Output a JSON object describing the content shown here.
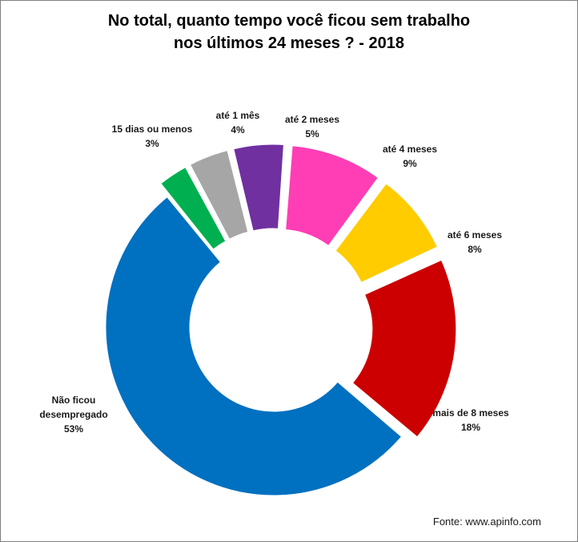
{
  "chart_data": {
    "type": "pie",
    "subtype": "exploded-donut",
    "title_line1": "No total, quanto tempo você ficou sem trabalho",
    "title_line2": "nos últimos 24 meses ? - 2018",
    "slices": [
      {
        "label_lines": [
          "15 dias ou menos"
        ],
        "pct_label": "3%",
        "value": 3,
        "color": "#00b050"
      },
      {
        "label_lines": [
          "até 1 mês"
        ],
        "pct_label": "4%",
        "value": 4,
        "color": "#a6a6a6"
      },
      {
        "label_lines": [
          "até 2 meses"
        ],
        "pct_label": "5%",
        "value": 5,
        "color": "#7030a0"
      },
      {
        "label_lines": [
          "até 4 meses"
        ],
        "pct_label": "9%",
        "value": 9,
        "color": "#ff3eb5"
      },
      {
        "label_lines": [
          "até 6 meses"
        ],
        "pct_label": "8%",
        "value": 8,
        "color": "#ffcc00"
      },
      {
        "label_lines": [
          "mais de 8 meses"
        ],
        "pct_label": "18%",
        "value": 18,
        "color": "#cc0000"
      },
      {
        "label_lines": [
          "Não ficou",
          "desempregado"
        ],
        "pct_label": "53%",
        "value": 53,
        "color": "#0070c0"
      }
    ],
    "legend": "none"
  },
  "source_note": "Fonte: www.apinfo.com"
}
